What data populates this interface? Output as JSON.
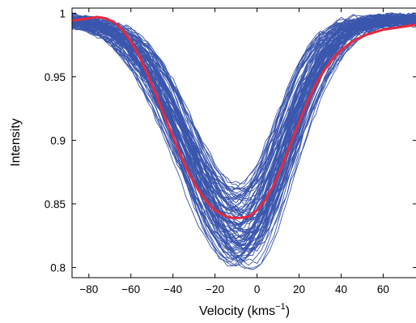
{
  "chart_data": {
    "type": "line",
    "xlabel": "Velocity (kms",
    "xlabel_sup": "−1",
    "xlabel_close": ")",
    "ylabel": "Intensity",
    "xlim": [
      -88,
      76
    ],
    "ylim": [
      0.792,
      1.004
    ],
    "xticks": [
      -80,
      -60,
      -40,
      -20,
      0,
      20,
      40,
      60
    ],
    "xtick_labels": [
      "−80",
      "−60",
      "−40",
      "−20",
      "0",
      "20",
      "40",
      "60"
    ],
    "yticks": [
      0.8,
      0.85,
      0.9,
      0.95,
      1.0
    ],
    "ytick_labels": [
      "0.8",
      "0.85",
      "0.9",
      "0.95",
      "1"
    ],
    "grid": false,
    "colors": {
      "ensemble": "#3a56ad",
      "mean": "#e8283c"
    },
    "series": [
      {
        "role": "mean",
        "x": [
          -88,
          -84,
          -80,
          -76,
          -72,
          -68,
          -64,
          -60,
          -56,
          -52,
          -48,
          -44,
          -40,
          -36,
          -32,
          -28,
          -24,
          -20,
          -16,
          -12,
          -8,
          -4,
          0,
          4,
          8,
          12,
          16,
          20,
          24,
          28,
          32,
          36,
          40,
          44,
          48,
          52,
          56,
          60,
          64,
          68,
          72,
          76
        ],
        "y": [
          0.994,
          0.995,
          0.996,
          0.997,
          0.996,
          0.993,
          0.987,
          0.978,
          0.966,
          0.952,
          0.936,
          0.919,
          0.903,
          0.887,
          0.873,
          0.861,
          0.852,
          0.845,
          0.841,
          0.839,
          0.839,
          0.84,
          0.845,
          0.853,
          0.865,
          0.88,
          0.897,
          0.914,
          0.93,
          0.944,
          0.955,
          0.964,
          0.971,
          0.976,
          0.98,
          0.983,
          0.985,
          0.987,
          0.988,
          0.989,
          0.99,
          0.991
        ]
      }
    ],
    "ensemble": {
      "count": 90,
      "center_y_range": [
        0.803,
        0.866
      ],
      "center_x_range": [
        -13,
        -2
      ],
      "note_visible": false
    }
  }
}
